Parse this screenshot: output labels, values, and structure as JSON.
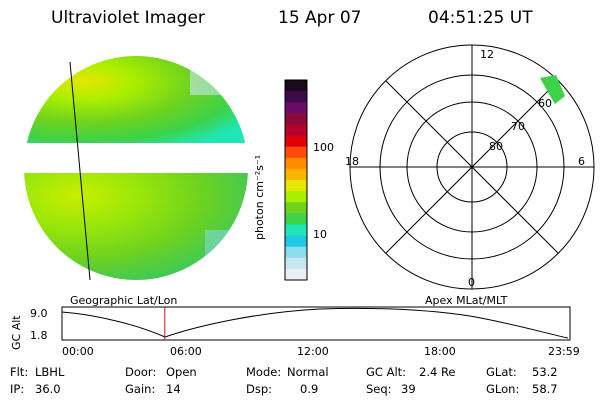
{
  "header": {
    "title": "Ultraviolet Imager",
    "date": "15 Apr 07",
    "time": "04:51:25 UT"
  },
  "colorbar": {
    "unit_label": "photon cm⁻²s⁻¹",
    "ticks": [
      "100",
      "10"
    ],
    "scale": "log",
    "colors": [
      "#1a0a1e",
      "#400a4a",
      "#6a0a6a",
      "#8c0a3a",
      "#b4002a",
      "#e0000a",
      "#ff4a0a",
      "#ff8c00",
      "#ffb400",
      "#e6e600",
      "#aaee00",
      "#6ed21e",
      "#3cd24a",
      "#1ee6b4",
      "#1ec8e6",
      "#8cdcf0",
      "#c8e6f0",
      "#e8f0f4"
    ]
  },
  "left_panel": {
    "label": "Geographic Lat/Lon"
  },
  "right_panel": {
    "label": "Apex MLat/MLT",
    "mlt_labels": [
      "12",
      "18",
      "6",
      "0"
    ],
    "mlat_labels": [
      "60",
      "70",
      "80"
    ]
  },
  "timeline": {
    "ylabel": "GC Alt",
    "yticks": [
      "9.0",
      "1.8"
    ],
    "xticks": [
      "00:00",
      "06:00",
      "12:00",
      "18:00",
      "23:59"
    ],
    "current_time_hours": 4.857
  },
  "info": {
    "row1": [
      {
        "key": "Flt:",
        "value": "LBHL"
      },
      {
        "key": "Door:",
        "value": "Open"
      },
      {
        "key": "Mode:",
        "value": "Normal"
      },
      {
        "key": "GC Alt:",
        "value": "2.4 Re"
      },
      {
        "key": "GLat:",
        "value": "53.2"
      }
    ],
    "row2": [
      {
        "key": "IP:",
        "value": "36.0"
      },
      {
        "key": "Gain:",
        "value": "14"
      },
      {
        "key": "Dsp:",
        "value": "0.9"
      },
      {
        "key": "Seq:",
        "value": "39"
      },
      {
        "key": "GLon:",
        "value": "58.7"
      }
    ]
  }
}
